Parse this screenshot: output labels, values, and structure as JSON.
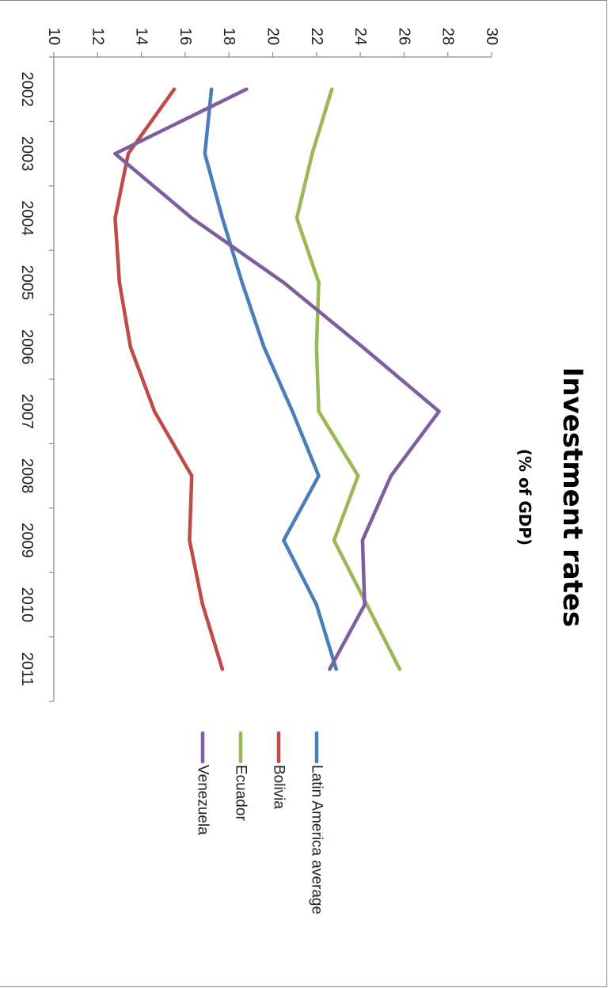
{
  "chart_data": {
    "type": "line",
    "title": "Investment rates",
    "subtitle": "(% of GDP)",
    "x": [
      "2002",
      "2003",
      "2004",
      "2005",
      "2006",
      "2007",
      "2008",
      "2009",
      "2010",
      "2011"
    ],
    "ylim": [
      10,
      30
    ],
    "yticks": [
      "10",
      "12",
      "14",
      "16",
      "18",
      "20",
      "22",
      "24",
      "26",
      "28",
      "30"
    ],
    "grid": false,
    "legend_position": "right",
    "series": [
      {
        "name": "Latin America average",
        "color": "#4a7ebb",
        "values": [
          17.2,
          16.9,
          17.7,
          18.6,
          19.6,
          20.9,
          22.1,
          20.5,
          22.0,
          22.9
        ]
      },
      {
        "name": "Bolivia",
        "color": "#be4b48",
        "values": [
          15.5,
          13.4,
          12.8,
          13.0,
          13.5,
          14.6,
          16.3,
          16.2,
          16.8,
          17.7
        ]
      },
      {
        "name": "Ecuador",
        "color": "#98b954",
        "values": [
          22.7,
          21.8,
          21.1,
          22.1,
          22.0,
          22.1,
          23.9,
          22.8,
          24.3,
          25.8
        ]
      },
      {
        "name": "Venezuela",
        "color": "#7d5fa0",
        "values": [
          18.8,
          12.8,
          16.3,
          20.5,
          24.1,
          27.6,
          25.4,
          24.1,
          24.2,
          22.6
        ]
      }
    ]
  }
}
